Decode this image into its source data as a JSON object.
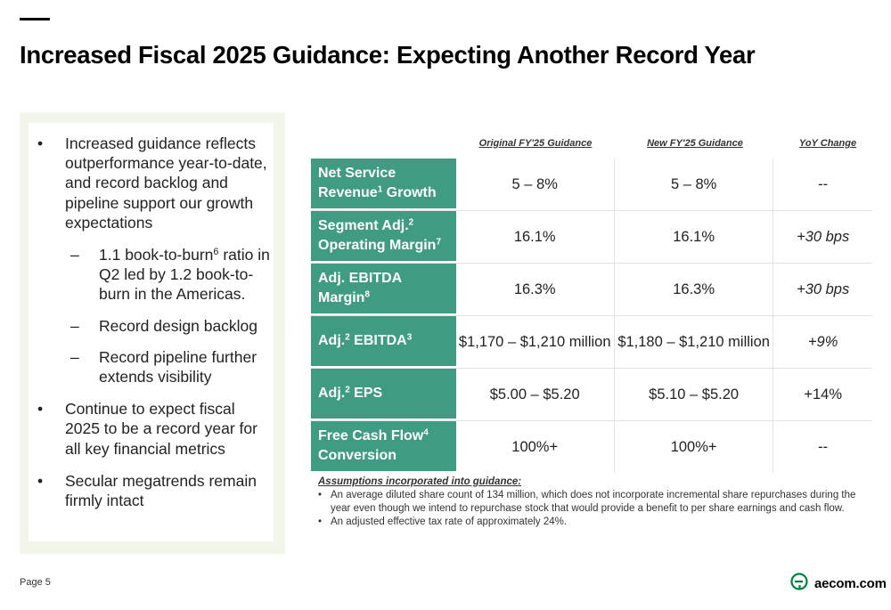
{
  "title": "Increased Fiscal 2025 Guidance: Expecting Another Record Year",
  "left_panel": {
    "bullet_glyph": "•",
    "dash_glyph": "–",
    "b1": "Increased guidance reflects outperformance year-to-date, and record backlog and pipeline support our growth expectations",
    "sub1_pre": "1.1 book-to-burn",
    "sub1_sup": "6",
    "sub1_post": " ratio in Q2 led by 1.2 book-to-burn in the Americas.",
    "sub2": "Record design backlog",
    "sub3": "Record pipeline further extends visibility",
    "b2": "Continue to expect fiscal 2025 to be a record year for all key financial metrics",
    "b3": "Secular megatrends remain firmly intact"
  },
  "table": {
    "headers": [
      "Original FY'25 Guidance",
      "New FY'25 Guidance",
      "YoY Change"
    ],
    "rows": [
      {
        "l1": "Net Service",
        "l2a": "Revenue",
        "sup": "1",
        "l2b": " Growth",
        "original": "5 – 8%",
        "new": "5 – 8%",
        "yoy": "--"
      },
      {
        "l1a": "Segment Adj.",
        "sup1": "2",
        "l2a": "Operating Margin",
        "sup2": "7",
        "original": "16.1%",
        "new": "16.1%",
        "yoy": "+30 bps"
      },
      {
        "l1": "Adj. EBITDA",
        "l2a": "Margin",
        "sup": "8",
        "original": "16.3%",
        "new": "16.3%",
        "yoy": "+30 bps"
      },
      {
        "a": "Adj.",
        "sup1": "2",
        "b": " EBITDA",
        "sup2": "3",
        "original": "$1,170 – $1,210 million",
        "new": "$1,180 – $1,210 million",
        "yoy": "+9%"
      },
      {
        "a": "Adj.",
        "sup1": "2",
        "b": " EPS",
        "original": "$5.00 – $5.20",
        "new": "$5.10 – $5.20",
        "yoy": "+14%"
      },
      {
        "l1a": "Free Cash Flow",
        "sup": "4",
        "l2": "Conversion",
        "original": "100%+",
        "new": "100%+",
        "yoy": "--"
      }
    ]
  },
  "assumptions": {
    "heading": "Assumptions incorporated into guidance:",
    "items": [
      "An average diluted share count of 134 million, which does not incorporate incremental share repurchases during the year even though we intend to repurchase stock that would provide a benefit to per share earnings and cash flow.",
      "An adjusted effective tax rate of approximately 24%."
    ]
  },
  "footer": {
    "page": "Page 5"
  },
  "logo": {
    "text": "aecom.com",
    "icon": "aecom-logo-icon",
    "color": "#00843d"
  },
  "colors": {
    "accent_green": "#3f9c83",
    "panel_bg": "#f2f5ea"
  }
}
